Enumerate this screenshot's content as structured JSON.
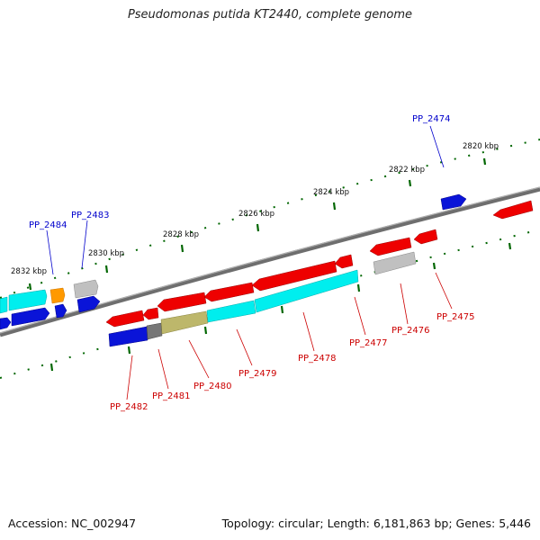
{
  "title": "Pseudomonas putida KT2440, complete genome",
  "accession": "Accession: NC_002947",
  "summary": "Topology: circular; Length: 6,181,863 bp; Genes: 5,446",
  "colors": {
    "forward_label": "#0000cc",
    "reverse_label": "#cc0000",
    "red": "#ee0000",
    "blue": "#0a14d8",
    "cyan": "#00eeee",
    "grey": "#b4b4b4",
    "darkgrey": "#777777",
    "khaki": "#bdb76b",
    "orange": "#ff9900",
    "backbone": "#808080",
    "ticks": "#006600"
  },
  "ticks": [
    "2820 kbp",
    "2822 kbp",
    "2824 kbp",
    "2826 kbp",
    "2828 kbp",
    "2830 kbp",
    "2832 kbp"
  ],
  "labels": [
    {
      "text": "PP_2474",
      "strand": "forward"
    },
    {
      "text": "PP_2483",
      "strand": "forward"
    },
    {
      "text": "PP_2484",
      "strand": "forward"
    },
    {
      "text": "PP_2475",
      "strand": "reverse"
    },
    {
      "text": "PP_2476",
      "strand": "reverse"
    },
    {
      "text": "PP_2477",
      "strand": "reverse"
    },
    {
      "text": "PP_2478",
      "strand": "reverse"
    },
    {
      "text": "PP_2479",
      "strand": "reverse"
    },
    {
      "text": "PP_2480",
      "strand": "reverse"
    },
    {
      "text": "PP_2481",
      "strand": "reverse"
    },
    {
      "text": "PP_2482",
      "strand": "reverse"
    }
  ]
}
